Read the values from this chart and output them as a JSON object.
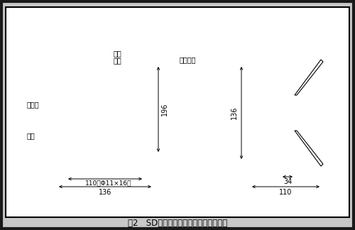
{
  "title": "图2   SD手动复位型拉绳开关外结构简图",
  "bg_color": "#c8c8c8",
  "inner_bg": "#ffffff",
  "line_color": "#000000",
  "labels": {
    "pull_ring": "拉环",
    "rocker": "摆臂",
    "reset_handle": "复位手柄",
    "outlet": "出线口",
    "housing": "壳体",
    "dim_196": "196",
    "dim_136_bot": "136",
    "dim_110": "110（Φ11×16）",
    "dim_136_side": "136",
    "dim_34": "34",
    "dim_110_side": "110"
  }
}
